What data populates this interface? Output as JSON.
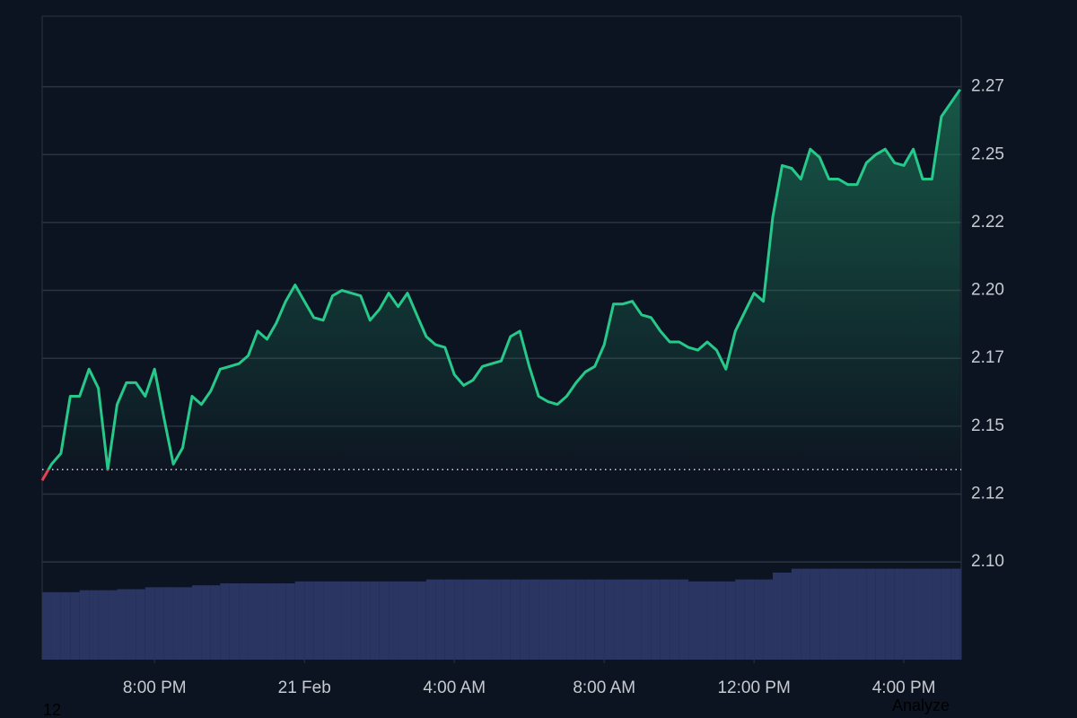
{
  "chart_data": {
    "type": "line",
    "x": [
      17,
      17.25,
      17.5,
      17.75,
      18,
      18.25,
      18.5,
      18.75,
      19,
      19.25,
      19.5,
      19.75,
      20,
      20.25,
      20.5,
      20.75,
      21,
      21.25,
      21.5,
      21.75,
      22,
      22.25,
      22.5,
      22.75,
      23,
      23.25,
      23.5,
      23.75,
      24,
      24.25,
      24.5,
      24.75,
      25,
      25.25,
      25.5,
      25.75,
      26,
      26.25,
      26.5,
      26.75,
      27,
      27.25,
      27.5,
      27.75,
      28,
      28.25,
      28.5,
      28.75,
      29,
      29.25,
      29.5,
      29.75,
      30,
      30.25,
      30.5,
      30.75,
      31,
      31.25,
      31.5,
      31.75,
      32,
      32.25,
      32.5,
      32.75,
      33,
      33.25,
      33.5,
      33.75,
      34,
      34.25,
      34.5,
      34.75,
      35,
      35.25,
      35.5,
      35.75,
      36,
      36.25,
      36.5,
      36.75,
      37,
      37.25,
      37.5,
      37.75,
      38,
      38.25,
      38.5,
      38.75,
      39,
      39.25,
      39.5,
      39.75,
      40,
      40.25,
      40.5,
      40.75,
      41,
      41.25,
      41.5
    ],
    "series": [
      {
        "color": "#27c98b",
        "values": [
          2.13,
          2.136,
          2.14,
          2.161,
          2.161,
          2.171,
          2.164,
          2.134,
          2.158,
          2.166,
          2.166,
          2.161,
          2.171,
          2.153,
          2.136,
          2.142,
          2.161,
          2.158,
          2.163,
          2.171,
          2.172,
          2.173,
          2.176,
          2.185,
          2.182,
          2.188,
          2.196,
          2.202,
          2.196,
          2.19,
          2.189,
          2.198,
          2.2,
          2.199,
          2.198,
          2.189,
          2.193,
          2.199,
          2.194,
          2.199,
          2.191,
          2.183,
          2.18,
          2.179,
          2.169,
          2.165,
          2.167,
          2.172,
          2.173,
          2.174,
          2.183,
          2.185,
          2.172,
          2.161,
          2.159,
          2.158,
          2.161,
          2.166,
          2.17,
          2.172,
          2.18,
          2.195,
          2.195,
          2.196,
          2.191,
          2.19,
          2.185,
          2.181,
          2.181,
          2.179,
          2.178,
          2.181,
          2.178,
          2.171,
          2.185,
          2.192,
          2.199,
          2.196,
          2.227,
          2.246,
          2.245,
          2.241,
          2.252,
          2.249,
          2.241,
          2.241,
          2.239,
          2.239,
          2.247,
          2.25,
          2.252,
          2.247,
          2.246,
          2.252,
          2.241,
          2.241,
          2.264,
          2.269,
          2.274
        ]
      }
    ],
    "down_color": "#e5424f",
    "reference": 2.134,
    "volume": {
      "color": "#2b3561",
      "values": [
        69,
        69,
        69,
        69,
        71,
        71,
        71,
        71,
        72,
        72,
        72,
        74,
        74,
        74,
        74,
        74,
        76,
        76,
        76,
        78,
        78,
        78,
        78,
        78,
        78,
        78,
        78,
        80,
        80,
        80,
        80,
        80,
        80,
        80,
        80,
        80,
        80,
        80,
        80,
        80,
        80,
        82,
        82,
        82,
        82,
        82,
        82,
        82,
        82,
        82,
        82,
        82,
        82,
        82,
        82,
        82,
        82,
        82,
        82,
        82,
        82,
        82,
        82,
        82,
        82,
        82,
        82,
        82,
        82,
        80,
        80,
        80,
        80,
        80,
        82,
        82,
        82,
        82,
        89,
        89,
        93,
        93,
        93,
        93,
        93,
        93,
        93,
        93,
        93,
        93,
        93,
        93,
        93,
        93,
        93,
        93,
        93,
        93,
        93
      ],
      "lim": [
        0,
        100
      ]
    },
    "xlim": [
      17,
      41.53
    ],
    "ylim": [
      2.064,
      2.301
    ],
    "xticks": [
      {
        "value": 20,
        "label": "8:00 PM"
      },
      {
        "value": 24,
        "label": "21 Feb"
      },
      {
        "value": 28,
        "label": "4:00 AM"
      },
      {
        "value": 32,
        "label": "8:00 AM"
      },
      {
        "value": 36,
        "label": "12:00 PM"
      },
      {
        "value": 40,
        "label": "4:00 PM"
      }
    ],
    "yticks": [
      {
        "value": 2.1,
        "label": "2.10"
      },
      {
        "value": 2.125,
        "label": "2.12"
      },
      2.15,
      {
        "value": 2.175,
        "label": "2.17"
      },
      {
        "value": 2.2,
        "label": "2.20"
      },
      {
        "value": 2.225,
        "label": "2.22"
      },
      2.25,
      {
        "value": 2.275,
        "label": "2.27"
      }
    ],
    "grid": true
  },
  "footer_left": "12",
  "footer_right": "Analyze"
}
